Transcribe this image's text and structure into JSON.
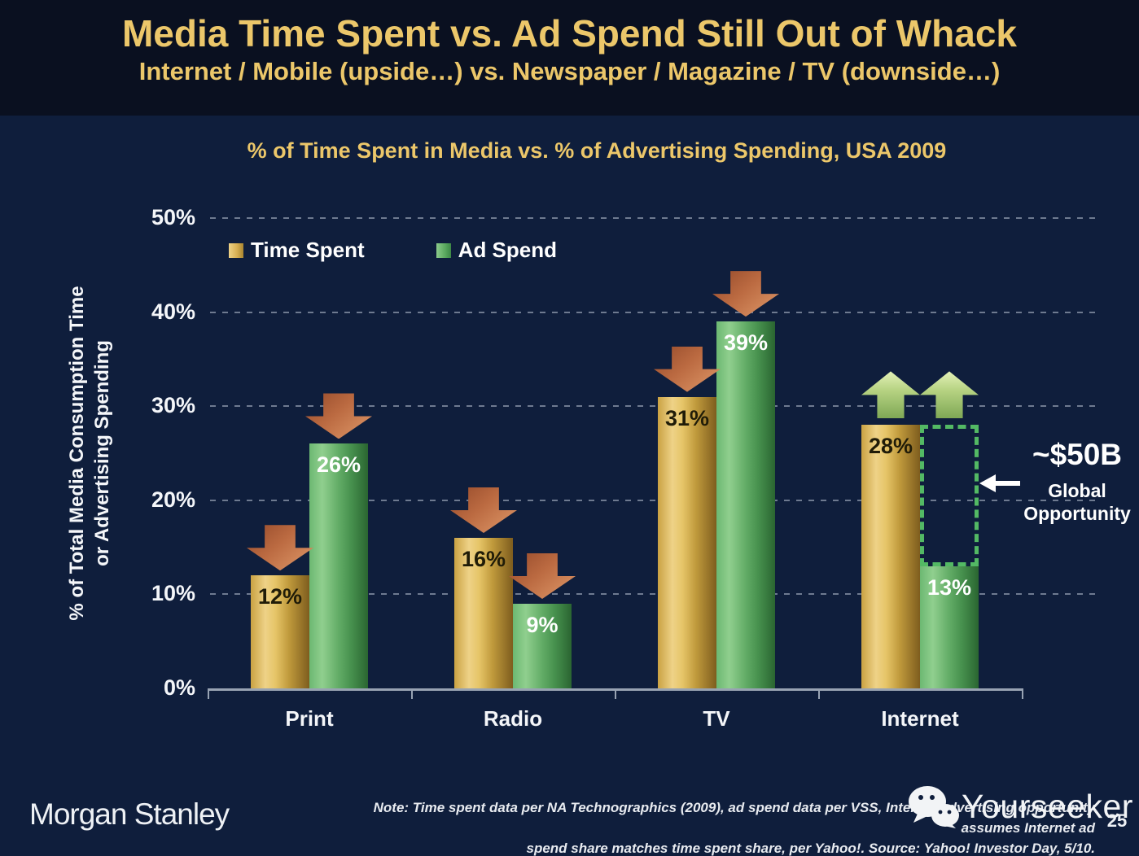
{
  "slide": {
    "title": "Media Time Spent vs. Ad Spend Still Out of Whack",
    "subtitle": "Internet / Mobile (upside…) vs. Newspaper / Magazine / TV (downside…)"
  },
  "chart_data": {
    "type": "bar",
    "title": "% of Time Spent in Media vs. % of Advertising Spending, USA 2009",
    "ylabel_line1": "% of Total Media Consumption Time",
    "ylabel_line2": "or Advertising Spending",
    "categories": [
      "Print",
      "Radio",
      "TV",
      "Internet"
    ],
    "series": [
      {
        "name": "Time Spent",
        "color": "#d8b054",
        "values": [
          12,
          16,
          31,
          28
        ],
        "arrows": [
          "down",
          "down",
          "down",
          "up"
        ]
      },
      {
        "name": "Ad Spend",
        "color": "#5aa95f",
        "values": [
          26,
          9,
          39,
          13
        ],
        "arrows": [
          "down",
          "down",
          "down",
          "up"
        ]
      }
    ],
    "value_suffix": "%",
    "ylim": [
      0,
      50
    ],
    "yticks": [
      "0%",
      "10%",
      "20%",
      "30%",
      "40%",
      "50%"
    ],
    "grid": "dotted-horizontal",
    "legend_position": "top-left-inside",
    "annotations": {
      "down_arrow_meaning": "downside",
      "up_arrow_meaning": "upside",
      "opportunity": {
        "category_index": 3,
        "value": "~$50B",
        "label_line1": "Global",
        "label_line2": "Opportunity"
      }
    }
  },
  "footer": {
    "brand": "Morgan Stanley",
    "note_line1": "Note: Time spent data per NA Technographics (2009), ad spend data per VSS, Internet advertising opportunity assumes Internet ad",
    "note_line2": "spend share matches time spent share, per Yahoo!. Source: Yahoo! Investor Day, 5/10.",
    "watermark": "Yourseeker",
    "page_number": "25"
  },
  "colors": {
    "background": "#0f1e3c",
    "title_band": "#0a1020",
    "accent_gold": "#ecc76a",
    "bar_gold": "#d8b054",
    "bar_green": "#5aa95f",
    "down_arrow": "#c9744a",
    "up_arrow": "#b9d584",
    "opportunity_border": "#53b964",
    "grid": "#b9c3d3",
    "text": "#ffffff"
  }
}
